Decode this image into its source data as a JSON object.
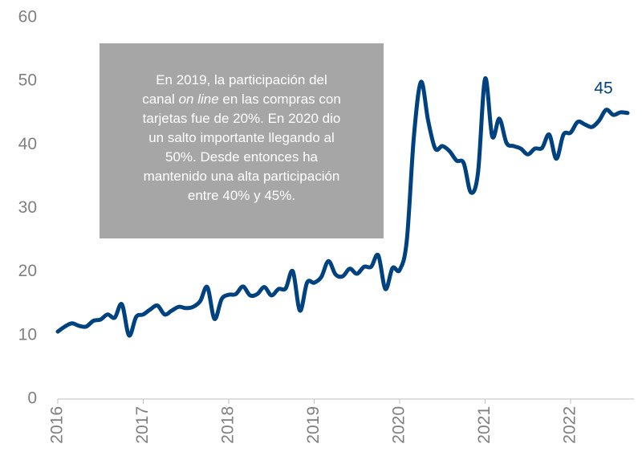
{
  "chart_data": {
    "type": "line",
    "categories": [
      "2016",
      null,
      null,
      null,
      null,
      null,
      null,
      null,
      null,
      null,
      null,
      null,
      "2017",
      null,
      null,
      null,
      null,
      null,
      null,
      null,
      null,
      null,
      null,
      null,
      "2018",
      null,
      null,
      null,
      null,
      null,
      null,
      null,
      null,
      null,
      null,
      null,
      "2019",
      null,
      null,
      null,
      null,
      null,
      null,
      null,
      null,
      null,
      null,
      null,
      "2020",
      null,
      null,
      null,
      null,
      null,
      null,
      null,
      null,
      null,
      null,
      null,
      "2021",
      null,
      null,
      null,
      null,
      null,
      null,
      null,
      null,
      null,
      null,
      null,
      "2022",
      null,
      null,
      null,
      null,
      null,
      null,
      null,
      null
    ],
    "values": [
      10.6,
      11.4,
      11.9,
      11.5,
      11.4,
      12.3,
      12.5,
      13.3,
      12.8,
      14.9,
      10.0,
      12.9,
      13.3,
      14.1,
      14.7,
      13.3,
      13.9,
      14.5,
      14.3,
      14.5,
      15.4,
      17.6,
      12.6,
      15.7,
      16.4,
      16.5,
      17.7,
      16.3,
      16.5,
      17.6,
      16.3,
      17.3,
      17.4,
      20.1,
      13.9,
      18.3,
      18.3,
      19.2,
      21.7,
      19.6,
      19.3,
      20.5,
      19.7,
      20.8,
      20.8,
      22.6,
      17.3,
      20.6,
      20.3,
      24.9,
      41.3,
      49.9,
      43.8,
      39.4,
      39.8,
      39.0,
      37.5,
      37.1,
      32.5,
      35.6,
      50.4,
      41.3,
      44.1,
      40.3,
      39.8,
      39.4,
      38.5,
      39.4,
      39.5,
      41.6,
      37.8,
      41.6,
      41.9,
      43.6,
      43.2,
      42.8,
      43.8,
      45.5,
      44.7,
      45.1,
      45
    ],
    "color": "#00427f",
    "ylim": [
      0,
      60
    ],
    "yticks": [
      0,
      10,
      20,
      30,
      40,
      50,
      60
    ],
    "annotation": {
      "lines": [
        [
          "En 2019, la participación del"
        ],
        [
          "canal ",
          {
            "text": "on line",
            "italic": true
          },
          " en las compras con"
        ],
        [
          "tarjetas fue de 20%. En 2020 dio"
        ],
        [
          "un salto importante llegando al"
        ],
        [
          "50%. Desde entonces ha"
        ],
        [
          "mantenido una alta participación"
        ],
        [
          "entre 40% y 45%."
        ]
      ],
      "background": "#a6a6a6"
    }
  }
}
